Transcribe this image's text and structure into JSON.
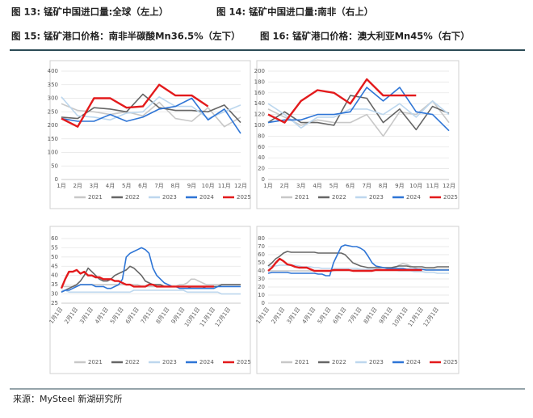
{
  "header": {
    "line1": [
      "图 13: 锰矿中国进口量:全球（左上）",
      "图 14: 锰矿中国进口量:南非（右上）"
    ],
    "line2": [
      "图 15: 锰矿港口价格：南非半碳酸Mn36.5%（左下）",
      "图 16: 锰矿港口价格：澳大利亚Mn45%（右下）"
    ]
  },
  "source": "来源：MySteel 新湖研究所",
  "chart_data": [
    {
      "type": "line",
      "categories": [
        "1月",
        "2月",
        "3月",
        "4月",
        "5月",
        "6月",
        "7月",
        "8月",
        "9月",
        "10月",
        "11月",
        "12月"
      ],
      "ylim": [
        0,
        400
      ],
      "yticks": [
        0,
        50,
        100,
        150,
        200,
        250,
        300,
        350,
        400
      ],
      "grid": true,
      "legend": "bottom",
      "series": [
        {
          "name": "2021",
          "color": "#c8c8c8",
          "values": [
            280,
            255,
            250,
            240,
            250,
            235,
            285,
            225,
            215,
            265,
            195,
            230
          ]
        },
        {
          "name": "2022",
          "color": "#666666",
          "values": [
            230,
            225,
            265,
            260,
            250,
            315,
            265,
            255,
            255,
            250,
            275,
            210
          ]
        },
        {
          "name": "2023",
          "color": "#bdd7ee",
          "values": [
            305,
            235,
            230,
            220,
            245,
            250,
            305,
            270,
            270,
            225,
            250,
            275
          ]
        },
        {
          "name": "2024",
          "color": "#2e75d6",
          "values": [
            225,
            215,
            215,
            240,
            215,
            230,
            260,
            270,
            300,
            220,
            260,
            170
          ]
        },
        {
          "name": "2025",
          "color": "#e31a1c",
          "values": [
            225,
            195,
            300,
            300,
            265,
            270,
            350,
            310,
            310,
            270,
            null,
            null
          ]
        }
      ]
    },
    {
      "type": "line",
      "categories": [
        "1月",
        "2月",
        "3月",
        "4月",
        "5月",
        "6月",
        "7月",
        "8月",
        "9月",
        "10月",
        "11月",
        "12月"
      ],
      "ylim": [
        0,
        200
      ],
      "yticks": [
        0,
        20,
        40,
        60,
        80,
        100,
        120,
        140,
        160,
        180,
        200
      ],
      "grid": true,
      "legend": "bottom",
      "series": [
        {
          "name": "2021",
          "color": "#c8c8c8",
          "values": [
            130,
            115,
            100,
            110,
            105,
            105,
            120,
            80,
            125,
            120,
            145,
            105
          ]
        },
        {
          "name": "2022",
          "color": "#666666",
          "values": [
            105,
            125,
            105,
            105,
            100,
            155,
            150,
            105,
            130,
            92,
            135,
            122
          ]
        },
        {
          "name": "2023",
          "color": "#bdd7ee",
          "values": [
            140,
            120,
            95,
            115,
            115,
            130,
            130,
            120,
            140,
            115,
            145,
            120
          ]
        },
        {
          "name": "2024",
          "color": "#2e75d6",
          "values": [
            105,
            110,
            110,
            120,
            120,
            125,
            170,
            145,
            170,
            125,
            120,
            90
          ]
        },
        {
          "name": "2025",
          "color": "#e31a1c",
          "values": [
            120,
            105,
            145,
            165,
            160,
            140,
            185,
            155,
            155,
            155,
            null,
            null
          ]
        }
      ]
    },
    {
      "type": "line",
      "categories": [
        "1月1日",
        null,
        null,
        null,
        "2月1日",
        null,
        null,
        null,
        "3月1日",
        null,
        null,
        null,
        "4月1日",
        null,
        null,
        null,
        "5月1日",
        null,
        null,
        null,
        "6月1日",
        null,
        null,
        null,
        "7月1日",
        null,
        null,
        null,
        "8月1日",
        null,
        null,
        null,
        "9月1日",
        null,
        null,
        null,
        "10月1日",
        null,
        null,
        null,
        "11月1日",
        null,
        null,
        null,
        "12月1日",
        null,
        null,
        null
      ],
      "ylim": [
        25,
        60
      ],
      "yticks": [
        25,
        30,
        35,
        40,
        45,
        50,
        55,
        60
      ],
      "grid": true,
      "legend": "bottom",
      "series": [
        {
          "name": "2021",
          "color": "#c8c8c8",
          "values": [
            34,
            34,
            34,
            34,
            34,
            35,
            35,
            35,
            35,
            35,
            35,
            35,
            35,
            35,
            35,
            35,
            35,
            35,
            35,
            35,
            35,
            34,
            34,
            34,
            34,
            34,
            34,
            34,
            34,
            34,
            34,
            35,
            35,
            36,
            38,
            38,
            37,
            36,
            35,
            35,
            35,
            35,
            35,
            35,
            35,
            35,
            35,
            35
          ]
        },
        {
          "name": "2022",
          "color": "#666666",
          "values": [
            31,
            32,
            33,
            34,
            35,
            37,
            40,
            44,
            42,
            40,
            38,
            37,
            37,
            38,
            40,
            41,
            42,
            43,
            45,
            44,
            42,
            40,
            37,
            36,
            35,
            35,
            35,
            34,
            34,
            34,
            34,
            34,
            34,
            34,
            33,
            33,
            33,
            33,
            34,
            34,
            34,
            34,
            35,
            35,
            35,
            35,
            35,
            35
          ]
        },
        {
          "name": "2023",
          "color": "#bdd7ee",
          "values": [
            32,
            32,
            31,
            31,
            31,
            31,
            31,
            31,
            31,
            31,
            31,
            31,
            31,
            31,
            31,
            31,
            31,
            31,
            31,
            32,
            32,
            32,
            32,
            32,
            32,
            32,
            32,
            32,
            32,
            32,
            32,
            32,
            32,
            31,
            31,
            31,
            31,
            31,
            31,
            31,
            31,
            31,
            30,
            30,
            30,
            30,
            30,
            30
          ]
        },
        {
          "name": "2024",
          "color": "#2e75d6",
          "values": [
            31,
            32,
            32,
            33,
            34,
            35,
            35,
            35,
            35,
            34,
            34,
            34,
            33,
            33,
            34,
            35,
            38,
            50,
            52,
            53,
            54,
            55,
            54,
            52,
            44,
            40,
            38,
            36,
            35,
            34,
            34,
            33,
            33,
            33,
            33,
            33,
            33,
            33,
            33,
            33,
            33,
            34,
            34,
            34,
            34,
            34,
            34,
            34
          ]
        },
        {
          "name": "2025",
          "color": "#e31a1c",
          "values": [
            33,
            38,
            42,
            42,
            43,
            41,
            42,
            40,
            40,
            39,
            39,
            38,
            38,
            38,
            37,
            37,
            36,
            35,
            35,
            34,
            34,
            34,
            34,
            35,
            35,
            34,
            34,
            34,
            34,
            34,
            34,
            34,
            34,
            34,
            34,
            34,
            34,
            34,
            34,
            34,
            34,
            null,
            null,
            null,
            null,
            null,
            null,
            null
          ]
        }
      ]
    },
    {
      "type": "line",
      "categories": [
        "1月1日",
        null,
        null,
        null,
        "2月1日",
        null,
        null,
        null,
        "3月1日",
        null,
        null,
        null,
        "4月1日",
        null,
        null,
        null,
        "5月1日",
        null,
        null,
        null,
        "6月1日",
        null,
        null,
        null,
        "7月1日",
        null,
        null,
        null,
        "8月1日",
        null,
        null,
        null,
        "9月1日",
        null,
        null,
        null,
        "10月1日",
        null,
        null,
        null,
        "11月1日",
        null,
        null,
        null,
        "12月1日",
        null,
        null,
        null
      ],
      "ylim": [
        0,
        80
      ],
      "yticks": [
        0,
        10,
        20,
        30,
        40,
        50,
        60,
        70,
        80
      ],
      "grid": true,
      "legend": "bottom",
      "series": [
        {
          "name": "2021",
          "color": "#c8c8c8",
          "values": [
            40,
            40,
            40,
            40,
            40,
            40,
            40,
            40,
            40,
            40,
            40,
            40,
            40,
            40,
            40,
            40,
            40,
            40,
            41,
            41,
            41,
            41,
            41,
            41,
            41,
            41,
            41,
            41,
            41,
            41,
            41,
            41,
            42,
            44,
            47,
            49,
            48,
            46,
            44,
            42,
            42,
            42,
            42,
            42,
            42,
            42,
            42,
            42
          ]
        },
        {
          "name": "2022",
          "color": "#666666",
          "values": [
            46,
            50,
            55,
            58,
            62,
            64,
            63,
            63,
            63,
            63,
            63,
            63,
            63,
            62,
            62,
            62,
            62,
            62,
            62,
            62,
            60,
            55,
            50,
            48,
            46,
            45,
            44,
            44,
            44,
            44,
            44,
            44,
            44,
            45,
            46,
            46,
            46,
            45,
            45,
            45,
            45,
            44,
            44,
            44,
            45,
            45,
            45,
            45
          ]
        },
        {
          "name": "2023",
          "color": "#bdd7ee",
          "values": [
            45,
            46,
            46,
            47,
            47,
            47,
            47,
            47,
            46,
            45,
            45,
            45,
            44,
            44,
            43,
            43,
            43,
            43,
            43,
            43,
            43,
            43,
            43,
            43,
            42,
            42,
            42,
            42,
            42,
            42,
            41,
            41,
            41,
            41,
            40,
            40,
            40,
            40,
            39,
            39,
            39,
            38,
            38,
            38,
            37,
            37,
            37,
            37
          ]
        },
        {
          "name": "2024",
          "color": "#2e75d6",
          "values": [
            37,
            38,
            38,
            38,
            38,
            38,
            37,
            37,
            37,
            37,
            37,
            37,
            37,
            36,
            36,
            34,
            34,
            50,
            60,
            70,
            72,
            71,
            70,
            70,
            68,
            65,
            58,
            50,
            46,
            45,
            44,
            43,
            43,
            43,
            43,
            43,
            42,
            42,
            42,
            42,
            42,
            41,
            41,
            41,
            41,
            41,
            41,
            41
          ]
        },
        {
          "name": "2025",
          "color": "#e31a1c",
          "values": [
            40,
            44,
            50,
            55,
            52,
            48,
            47,
            45,
            44,
            44,
            44,
            42,
            40,
            40,
            40,
            40,
            40,
            41,
            41,
            41,
            41,
            41,
            40,
            40,
            40,
            40,
            40,
            40,
            41,
            41,
            41,
            41,
            41,
            41,
            41,
            41,
            41,
            41,
            41,
            41,
            41,
            null,
            null,
            null,
            null,
            null,
            null,
            null
          ]
        }
      ]
    }
  ]
}
